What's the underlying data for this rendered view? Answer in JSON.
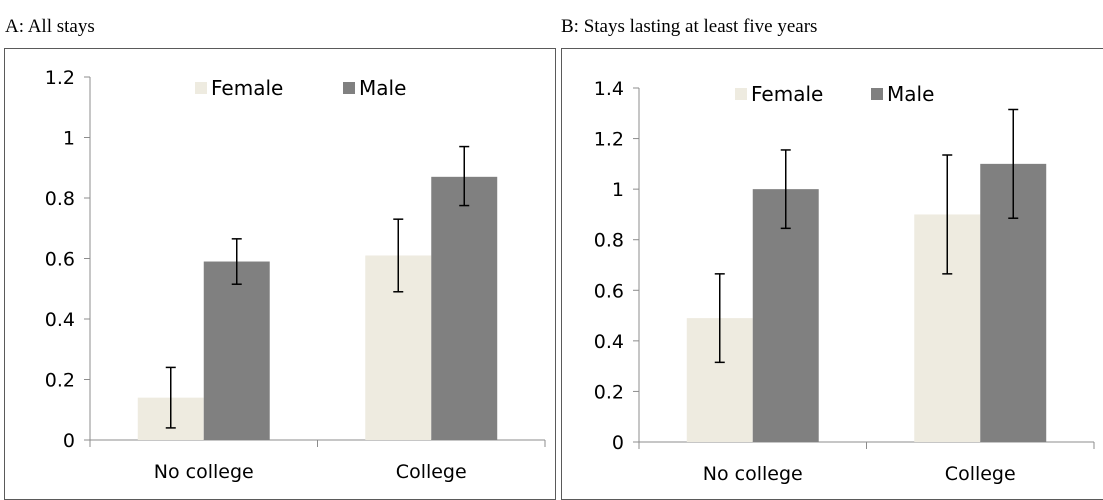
{
  "chart_data": [
    {
      "type": "bar",
      "title": "A: All stays",
      "xlabel": "",
      "ylabel": "",
      "categories": [
        "No college",
        "College"
      ],
      "series": [
        {
          "name": "Female",
          "values": [
            0.14,
            0.61
          ],
          "err_low": [
            0.04,
            0.49
          ],
          "err_high": [
            0.24,
            0.73
          ]
        },
        {
          "name": "Male",
          "values": [
            0.59,
            0.87
          ],
          "err_low": [
            0.515,
            0.775
          ],
          "err_high": [
            0.665,
            0.97
          ]
        }
      ],
      "ylim": [
        0,
        1.2
      ],
      "yticks": [
        "0",
        "0.2",
        "0.4",
        "0.6",
        "0.8",
        "1",
        "1.2"
      ],
      "ytick_values": [
        0,
        0.2,
        0.4,
        0.6,
        0.8,
        1,
        1.2
      ],
      "grid": false,
      "legend": "top-center"
    },
    {
      "type": "bar",
      "title": "B: Stays lasting at least five years",
      "xlabel": "",
      "ylabel": "",
      "categories": [
        "No college",
        "College"
      ],
      "series": [
        {
          "name": "Female",
          "values": [
            0.49,
            0.9
          ],
          "err_low": [
            0.315,
            0.665
          ],
          "err_high": [
            0.665,
            1.135
          ]
        },
        {
          "name": "Male",
          "values": [
            1.0,
            1.1
          ],
          "err_low": [
            0.845,
            0.885
          ],
          "err_high": [
            1.155,
            1.315
          ]
        }
      ],
      "ylim": [
        0,
        1.4
      ],
      "yticks": [
        "0",
        "0.2",
        "0.4",
        "0.6",
        "0.8",
        "1",
        "1.2",
        "1.4"
      ],
      "ytick_values": [
        0,
        0.2,
        0.4,
        0.6,
        0.8,
        1,
        1.2,
        1.4
      ],
      "grid": false,
      "legend": "top-center"
    }
  ],
  "colors": {
    "female": "#eeebe0",
    "male": "#808080",
    "axis": "#8c8c8c",
    "error_bar": "#000000"
  }
}
